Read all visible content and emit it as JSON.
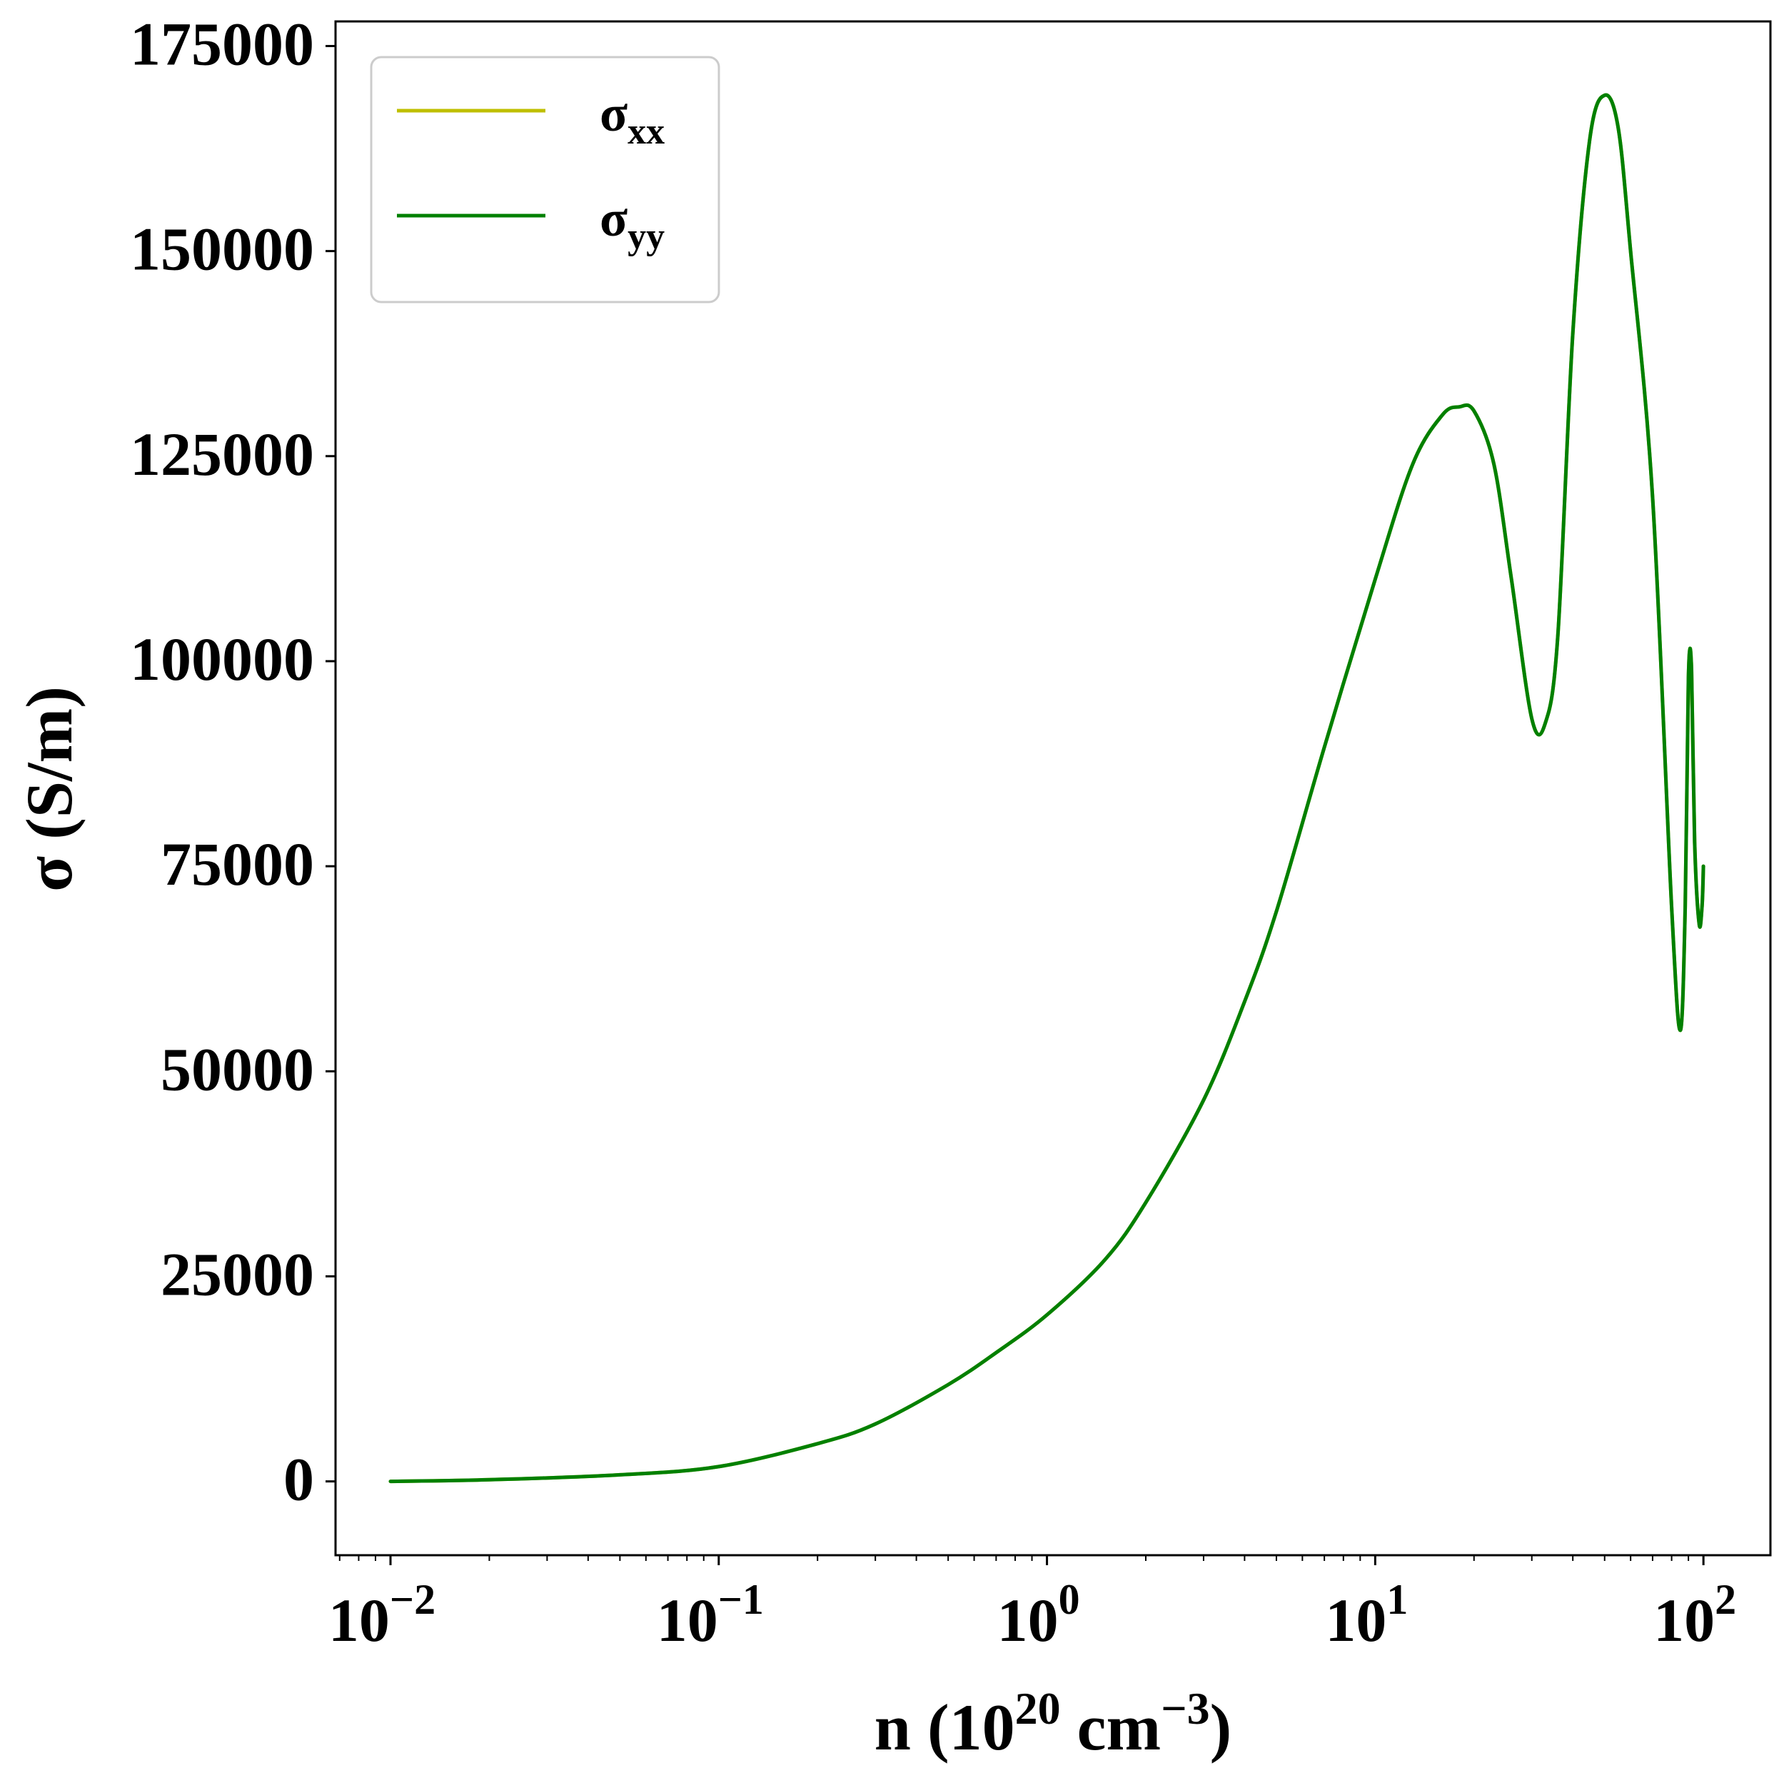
{
  "chart_data": {
    "type": "line",
    "xscale": "log",
    "xlim": [
      0.0068,
      160
    ],
    "ylim": [
      -9000,
      178000
    ],
    "xlabel": {
      "base": "n (10",
      "exp1": "20",
      "mid": " cm",
      "exp2": "−3",
      "end": ")"
    },
    "ylabel": "σ (S/m)",
    "grid": false,
    "legend_position": "top-left",
    "x_ticks": [
      {
        "value": 0.01,
        "base": "10",
        "exp": "−2"
      },
      {
        "value": 0.1,
        "base": "10",
        "exp": "−1"
      },
      {
        "value": 1,
        "base": "10",
        "exp": "0"
      },
      {
        "value": 10,
        "base": "10",
        "exp": "1"
      },
      {
        "value": 100,
        "base": "10",
        "exp": "2"
      }
    ],
    "y_ticks": [
      {
        "value": 0,
        "label": "0"
      },
      {
        "value": 25000,
        "label": "25000"
      },
      {
        "value": 50000,
        "label": "50000"
      },
      {
        "value": 75000,
        "label": "75000"
      },
      {
        "value": 100000,
        "label": "100000"
      },
      {
        "value": 125000,
        "label": "125000"
      },
      {
        "value": 150000,
        "label": "150000"
      },
      {
        "value": 175000,
        "label": "175000"
      }
    ],
    "series": [
      {
        "name": "σxx",
        "symbol": "σ",
        "subscript": "xx",
        "color": "#bfbf00",
        "x": [
          0.01,
          0.02,
          0.05,
          0.1,
          0.2,
          0.3,
          0.5,
          0.7,
          1.0,
          1.5,
          2.0,
          3.0,
          4.0,
          5.0,
          7.0,
          10.0,
          13.0,
          16.0,
          18.0,
          20.0,
          23.0,
          26.0,
          30.0,
          33.0,
          36.0,
          40.0,
          45.0,
          50.0,
          55.0,
          60.0,
          70.0,
          80.0,
          85.0,
          88.0,
          90.0,
          92.0,
          94.0,
          97.0,
          99.0,
          100.0
        ],
        "y": [
          0,
          200,
          800,
          1800,
          4600,
          7000,
          11800,
          15700,
          20300,
          27000,
          34000,
          46500,
          58500,
          69500,
          89500,
          110000,
          124000,
          130000,
          131000,
          130500,
          124000,
          110000,
          93000,
          92500,
          103000,
          140000,
          163500,
          169000,
          165000,
          150000,
          120000,
          70000,
          55000,
          70000,
          98000,
          99000,
          78000,
          68000,
          70000,
          75000
        ]
      },
      {
        "name": "σyy",
        "symbol": "σ",
        "subscript": "yy",
        "color": "#008000",
        "x": [
          0.01,
          0.02,
          0.05,
          0.1,
          0.2,
          0.3,
          0.5,
          0.7,
          1.0,
          1.5,
          2.0,
          3.0,
          4.0,
          5.0,
          7.0,
          10.0,
          13.0,
          16.0,
          18.0,
          20.0,
          23.0,
          26.0,
          30.0,
          33.0,
          36.0,
          40.0,
          45.0,
          50.0,
          55.0,
          60.0,
          70.0,
          80.0,
          85.0,
          88.0,
          90.0,
          92.0,
          94.0,
          97.0,
          99.0,
          100.0
        ],
        "y": [
          0,
          200,
          800,
          1800,
          4600,
          7000,
          11800,
          15700,
          20300,
          27000,
          34000,
          46500,
          58500,
          69500,
          89500,
          110000,
          124000,
          130000,
          131000,
          130500,
          124000,
          110000,
          93000,
          92500,
          103000,
          140000,
          163500,
          169000,
          165000,
          150000,
          120000,
          70000,
          55000,
          70000,
          98000,
          99000,
          78000,
          68000,
          70000,
          75000
        ]
      }
    ]
  }
}
